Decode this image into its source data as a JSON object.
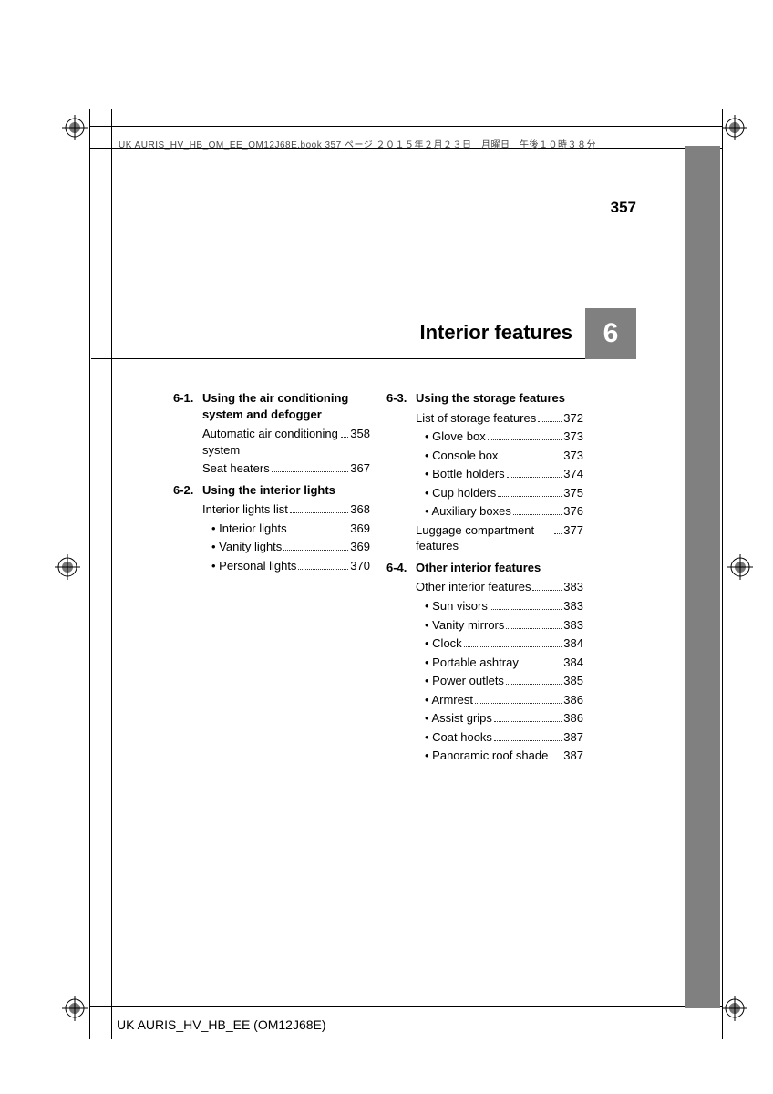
{
  "meta": {
    "header_line": "UK AURIS_HV_HB_OM_EE_OM12J68E.book  357 ページ  ２０１５年２月２３日　月曜日　午後１０時３８分",
    "page_number": "357",
    "footer": "UK AURIS_HV_HB_EE (OM12J68E)"
  },
  "chapter": {
    "number": "6",
    "title": "Interior features"
  },
  "colors": {
    "tab_gray": "#808080",
    "text": "#000000",
    "bg": "#ffffff"
  },
  "toc": {
    "left": [
      {
        "num": "6-1.",
        "title": "Using the air conditioning system and defogger",
        "entries": [
          {
            "label": "Automatic air conditioning system",
            "page": "358",
            "sub": false
          },
          {
            "label": "Seat heaters",
            "page": "367",
            "sub": false
          }
        ]
      },
      {
        "num": "6-2.",
        "title": "Using the interior lights",
        "entries": [
          {
            "label": "Interior lights list",
            "page": "368",
            "sub": false
          },
          {
            "label": "• Interior lights",
            "page": "369",
            "sub": true
          },
          {
            "label": "• Vanity lights",
            "page": "369",
            "sub": true
          },
          {
            "label": "• Personal lights",
            "page": "370",
            "sub": true
          }
        ]
      }
    ],
    "right": [
      {
        "num": "6-3.",
        "title": "Using the storage features",
        "entries": [
          {
            "label": "List of storage features",
            "page": "372",
            "sub": false
          },
          {
            "label": "• Glove box",
            "page": "373",
            "sub": true
          },
          {
            "label": "• Console box",
            "page": "373",
            "sub": true
          },
          {
            "label": "• Bottle holders",
            "page": "374",
            "sub": true
          },
          {
            "label": "• Cup holders",
            "page": "375",
            "sub": true
          },
          {
            "label": "• Auxiliary boxes",
            "page": "376",
            "sub": true
          },
          {
            "label": "Luggage compartment features",
            "page": "377",
            "sub": false
          }
        ]
      },
      {
        "num": "6-4.",
        "title": "Other interior features",
        "entries": [
          {
            "label": "Other interior features",
            "page": "383",
            "sub": false
          },
          {
            "label": "• Sun visors",
            "page": "383",
            "sub": true
          },
          {
            "label": "• Vanity mirrors",
            "page": "383",
            "sub": true
          },
          {
            "label": "• Clock",
            "page": "384",
            "sub": true
          },
          {
            "label": "• Portable ashtray",
            "page": "384",
            "sub": true
          },
          {
            "label": "• Power outlets",
            "page": "385",
            "sub": true
          },
          {
            "label": "• Armrest",
            "page": "386",
            "sub": true
          },
          {
            "label": "• Assist grips",
            "page": "386",
            "sub": true
          },
          {
            "label": "• Coat hooks",
            "page": "387",
            "sub": true
          },
          {
            "label": "• Panoramic roof shade",
            "page": "387",
            "sub": true
          }
        ]
      }
    ]
  }
}
